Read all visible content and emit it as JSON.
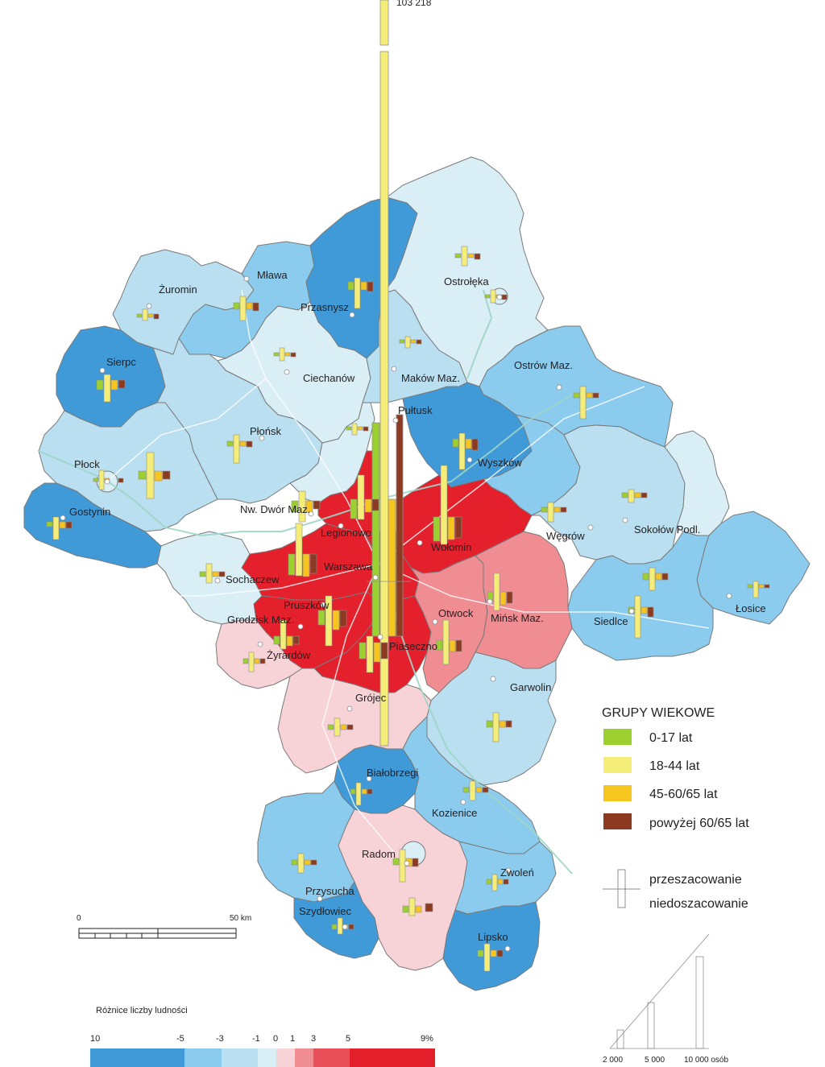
{
  "colors": {
    "c_m10": "#3f9ad7",
    "c_m5": "#8bcbee",
    "c_m3": "#b9dff0",
    "c_m1": "#daeef5",
    "c_p0": "#f7d3d8",
    "c_p1": "#ef8d93",
    "c_p3": "#e94f58",
    "c_p5": "#e4202c",
    "g0": "#9cd030",
    "g1": "#f4ee78",
    "g2": "#f6c51f",
    "g3": "#8c3a22"
  },
  "top_value": "103 218",
  "towns": [
    {
      "id": "zuromin",
      "label": "Żuromin"
    },
    {
      "id": "mlawa",
      "label": "Mława"
    },
    {
      "id": "przasnysz",
      "label": "Przasnysz"
    },
    {
      "id": "ostroleka",
      "label": "Ostrołęka"
    },
    {
      "id": "sierpc",
      "label": "Sierpc"
    },
    {
      "id": "ciechanow",
      "label": "Ciechanów"
    },
    {
      "id": "makow",
      "label": "Maków Maz."
    },
    {
      "id": "ostrow",
      "label": "Ostrów Maz."
    },
    {
      "id": "pultusk",
      "label": "Pułtusk"
    },
    {
      "id": "plonsk",
      "label": "Płońsk"
    },
    {
      "id": "plock",
      "label": "Płock"
    },
    {
      "id": "wyszkow",
      "label": "Wyszków"
    },
    {
      "id": "gostynin",
      "label": "Gostynin"
    },
    {
      "id": "nwdwor",
      "label": "Nw. Dwór Maz."
    },
    {
      "id": "legionowo",
      "label": "Legionowo"
    },
    {
      "id": "wolomin",
      "label": "Wołomin"
    },
    {
      "id": "wegrow",
      "label": "Węgrów"
    },
    {
      "id": "sokolow",
      "label": "Sokołów Podl."
    },
    {
      "id": "sochaczew",
      "label": "Sochaczew"
    },
    {
      "id": "warszawa",
      "label": "Warszawa"
    },
    {
      "id": "pruszkow",
      "label": "Pruszków"
    },
    {
      "id": "grodzisk",
      "label": "Grodzisk Maz."
    },
    {
      "id": "otwock",
      "label": "Otwock"
    },
    {
      "id": "minsk",
      "label": "Mińsk Maz."
    },
    {
      "id": "siedlce",
      "label": "Siedlce"
    },
    {
      "id": "losice",
      "label": "Łosice"
    },
    {
      "id": "zyrardow",
      "label": "Żyrardów"
    },
    {
      "id": "piaseczno",
      "label": "Piaseczno"
    },
    {
      "id": "garwolin",
      "label": "Garwolin"
    },
    {
      "id": "grojec",
      "label": "Grójec"
    },
    {
      "id": "bialobrzegi",
      "label": "Białobrzegi"
    },
    {
      "id": "kozienice",
      "label": "Kozienice"
    },
    {
      "id": "radom",
      "label": "Radom"
    },
    {
      "id": "zwolen",
      "label": "Zwoleń"
    },
    {
      "id": "przysucha",
      "label": "Przysucha"
    },
    {
      "id": "szydlowiec",
      "label": "Szydłowiec"
    },
    {
      "id": "lipsko",
      "label": "Lipsko"
    }
  ],
  "legend": {
    "title": "GRUPY WIEKOWE",
    "groups": [
      {
        "label": "0-17 lat"
      },
      {
        "label": "18-44 lat"
      },
      {
        "label": "45-60/65 lat"
      },
      {
        "label": "powyżej 60/65  lat"
      }
    ],
    "over": "przeszacowanie",
    "under": "niedoszacowanie"
  },
  "scale_bar": {
    "start": "0",
    "end": "50 km"
  },
  "ramp": {
    "title": "Różnice liczby ludności",
    "ticks": [
      "10",
      "-5",
      "-3",
      "-1",
      "0",
      "1",
      "3",
      "5",
      "9%"
    ]
  },
  "size_legend": {
    "labels": [
      "2 000",
      "5 000",
      "10 000 osób"
    ]
  }
}
